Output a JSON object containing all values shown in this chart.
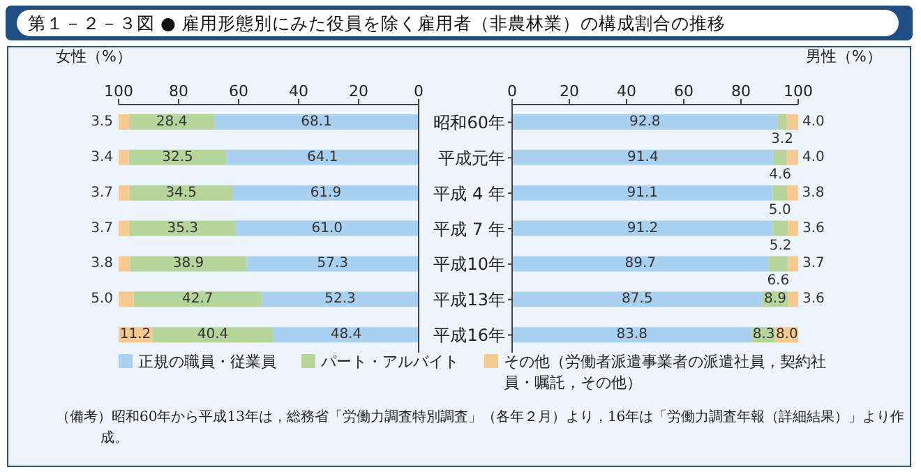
{
  "chart_data": [
    {
      "type": "bar",
      "orientation": "horizontal",
      "stacked": true,
      "title": "第１－２－３図 ● 雇用形態別にみた役員を除く雇用者（非農林業）の構成割合の推移",
      "xlabel": "女性（%）",
      "categories": [
        null,
        null,
        null,
        null,
        null,
        null,
        null
      ],
      "xlim": [
        100,
        0
      ],
      "xticks": [
        100,
        80,
        60,
        40,
        20,
        0
      ],
      "tick_labels": "x",
      "legend": false,
      "annotations": [
        "（備考）昭和60年から平成13年は，総務省「労働力調査特別調査」（各年２月）より，16年は「労働力調査年報（詳細結果）」より作成。"
      ],
      "series": [
        {
          "color": "#a9d1ef",
          "values": [
            68.1,
            64.1,
            61.9,
            61.0,
            57.3,
            52.3,
            48.4
          ],
          "value_labels": [
            "68.1",
            "64.1",
            "61.9",
            "61.0",
            "57.3",
            "52.3",
            "48.4"
          ]
        },
        {
          "color": "#b6d59b",
          "values": [
            28.4,
            32.5,
            34.5,
            35.3,
            38.9,
            42.7,
            40.4
          ],
          "value_labels": [
            "28.4",
            "32.5",
            "34.5",
            "35.3",
            "38.9",
            "42.7",
            "40.4"
          ]
        },
        {
          "color": "#f6c991",
          "values": [
            3.5,
            3.4,
            3.7,
            3.7,
            3.8,
            5.0,
            11.2
          ],
          "value_labels": [
            "3.5",
            "3.4",
            "3.7",
            "3.7",
            "3.8",
            "5.0",
            "11.2"
          ]
        }
      ]
    },
    {
      "type": "bar",
      "orientation": "horizontal",
      "stacked": true,
      "xlabel": "男性（%）",
      "categories": [
        "昭和60年",
        "平成元年",
        "平成 4 年",
        "平成 7 年",
        "平成10年",
        "平成13年",
        "平成16年"
      ],
      "xlim": [
        0,
        100
      ],
      "xticks": [
        0,
        20,
        40,
        60,
        80,
        100
      ],
      "legend": "bottom",
      "series": [
        {
          "name": "正規の職員・従業員",
          "color": "#a9d1ef",
          "values": [
            92.8,
            91.4,
            91.1,
            91.2,
            89.7,
            87.5,
            83.8
          ],
          "value_labels": [
            "92.8",
            "91.4",
            "91.1",
            "91.2",
            "89.7",
            "87.5",
            "83.8"
          ]
        },
        {
          "name": "パート・アルバイト",
          "color": "#b6d59b",
          "values": [
            3.2,
            4.6,
            5.0,
            5.2,
            6.6,
            8.9,
            8.3
          ],
          "value_labels": [
            "3.2",
            "4.6",
            "5.0",
            "5.2",
            "6.6",
            "8.9",
            "8.3"
          ]
        },
        {
          "name": "その他（労働者派遣事業者の派遣社員，契約社員・嘱託，その他）",
          "color": "#f6c991",
          "values": [
            4.0,
            4.0,
            3.8,
            3.6,
            3.7,
            3.6,
            8.0
          ],
          "value_labels": [
            "4.0",
            "4.0",
            "3.8",
            "3.6",
            "3.7",
            "3.6",
            "8.0"
          ]
        }
      ]
    }
  ]
}
